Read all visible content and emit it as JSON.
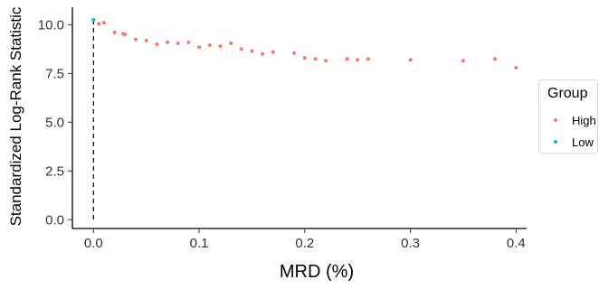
{
  "chart_data": {
    "type": "scatter",
    "title": "",
    "xlabel": "MRD (%)",
    "ylabel": "Standardized Log-Rank Statistic",
    "xlim": [
      -0.02,
      0.41
    ],
    "ylim": [
      -0.45,
      10.9
    ],
    "x_ticks": [
      0.0,
      0.1,
      0.2,
      0.3,
      0.4
    ],
    "x_tick_labels": [
      "0.0",
      "0.1",
      "0.2",
      "0.3",
      "0.4"
    ],
    "y_ticks": [
      0.0,
      2.5,
      5.0,
      7.5,
      10.0
    ],
    "y_tick_labels": [
      "0.0",
      "2.5",
      "5.0",
      "7.5",
      "10.0"
    ],
    "grid": false,
    "vline": {
      "x": 0.0,
      "style": "dashed"
    },
    "legend": {
      "title": "Group",
      "placement": "right"
    },
    "series": [
      {
        "name": "High",
        "color": "#F8766D",
        "points": [
          [
            0.005,
            10.05
          ],
          [
            0.01,
            10.1
          ],
          [
            0.02,
            9.6
          ],
          [
            0.028,
            9.55
          ],
          [
            0.03,
            9.5
          ],
          [
            0.04,
            9.25
          ],
          [
            0.05,
            9.2
          ],
          [
            0.06,
            9.0
          ],
          [
            0.07,
            9.1
          ],
          [
            0.08,
            9.05
          ],
          [
            0.09,
            9.1
          ],
          [
            0.1,
            8.85
          ],
          [
            0.11,
            8.95
          ],
          [
            0.12,
            8.9
          ],
          [
            0.13,
            9.05
          ],
          [
            0.14,
            8.75
          ],
          [
            0.15,
            8.65
          ],
          [
            0.16,
            8.5
          ],
          [
            0.17,
            8.6
          ],
          [
            0.19,
            8.55
          ],
          [
            0.2,
            8.3
          ],
          [
            0.21,
            8.25
          ],
          [
            0.22,
            8.15
          ],
          [
            0.24,
            8.25
          ],
          [
            0.25,
            8.2
          ],
          [
            0.26,
            8.25
          ],
          [
            0.3,
            8.2
          ],
          [
            0.35,
            8.15
          ],
          [
            0.38,
            8.25
          ],
          [
            0.4,
            7.8
          ]
        ]
      },
      {
        "name": "Low",
        "color": "#00BFC4",
        "points": [
          [
            0.0,
            10.25
          ]
        ]
      }
    ]
  }
}
